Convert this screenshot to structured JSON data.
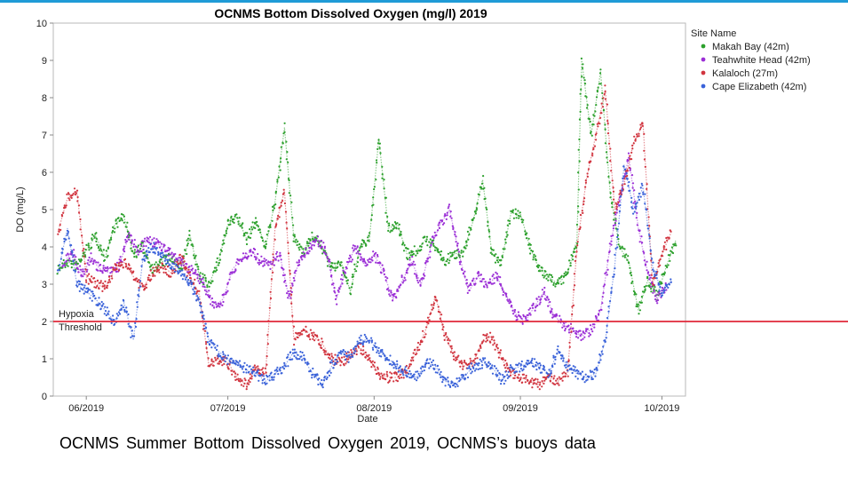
{
  "colors": {
    "top_rule": "#1f9bd7",
    "threshold": "#e0283a",
    "makah": "#2ca02c",
    "teahwhite": "#9b2fd6",
    "kalaloch": "#d1343f",
    "cape": "#3a62d9"
  },
  "caption": "OCNMS Summer  Bottom  Dissolved Oxygen 2019, OCNMS’s buoys data",
  "chart_data": {
    "type": "scatter",
    "title": "OCNMS Bottom Dissolved Oxygen (mg/l) 2019",
    "xlabel": "Date",
    "ylabel": "DO (mg/L)",
    "xlim": [
      "2019-05-25",
      "2019-10-06"
    ],
    "ylim": [
      0,
      10
    ],
    "x_ticks": [
      {
        "date": "2019-06-01",
        "label": "06/2019"
      },
      {
        "date": "2019-07-01",
        "label": "07/2019"
      },
      {
        "date": "2019-08-01",
        "label": "08/2019"
      },
      {
        "date": "2019-09-01",
        "label": "09/2019"
      },
      {
        "date": "2019-10-01",
        "label": "10/2019"
      }
    ],
    "y_ticks": [
      "0",
      "1",
      "2",
      "3",
      "4",
      "5",
      "6",
      "7",
      "8",
      "9",
      "10"
    ],
    "grid": false,
    "legend": {
      "title": "Site Name",
      "position": "right"
    },
    "threshold": {
      "value": 2,
      "label_line1": "Hypoxia",
      "label_line2": "Threshold"
    },
    "series": [
      {
        "name": "Makah Bay (42m)",
        "color_key": "makah",
        "points": [
          [
            "2019-05-26",
            3.4
          ],
          [
            "2019-05-28",
            3.6
          ],
          [
            "2019-05-30",
            3.5
          ],
          [
            "2019-06-01",
            3.9
          ],
          [
            "2019-06-03",
            4.3
          ],
          [
            "2019-06-05",
            3.7
          ],
          [
            "2019-06-07",
            4.6
          ],
          [
            "2019-06-09",
            4.8
          ],
          [
            "2019-06-11",
            3.8
          ],
          [
            "2019-06-13",
            4.0
          ],
          [
            "2019-06-15",
            3.4
          ],
          [
            "2019-06-17",
            3.6
          ],
          [
            "2019-06-19",
            3.7
          ],
          [
            "2019-06-21",
            3.4
          ],
          [
            "2019-06-23",
            4.3
          ],
          [
            "2019-06-25",
            3.2
          ],
          [
            "2019-06-27",
            3.0
          ],
          [
            "2019-06-29",
            3.6
          ],
          [
            "2019-07-01",
            4.6
          ],
          [
            "2019-07-03",
            4.8
          ],
          [
            "2019-07-05",
            4.2
          ],
          [
            "2019-07-07",
            4.7
          ],
          [
            "2019-07-09",
            4.0
          ],
          [
            "2019-07-11",
            5.2
          ],
          [
            "2019-07-13",
            7.2
          ],
          [
            "2019-07-15",
            4.2
          ],
          [
            "2019-07-17",
            3.9
          ],
          [
            "2019-07-19",
            4.3
          ],
          [
            "2019-07-21",
            4.0
          ],
          [
            "2019-07-23",
            3.4
          ],
          [
            "2019-07-25",
            3.6
          ],
          [
            "2019-07-27",
            2.8
          ],
          [
            "2019-07-29",
            4.0
          ],
          [
            "2019-07-31",
            4.2
          ],
          [
            "2019-08-02",
            6.9
          ],
          [
            "2019-08-04",
            4.5
          ],
          [
            "2019-08-06",
            4.6
          ],
          [
            "2019-08-08",
            3.8
          ],
          [
            "2019-08-10",
            3.9
          ],
          [
            "2019-08-12",
            4.2
          ],
          [
            "2019-08-14",
            4.0
          ],
          [
            "2019-08-16",
            3.6
          ],
          [
            "2019-08-18",
            3.8
          ],
          [
            "2019-08-20",
            3.9
          ],
          [
            "2019-08-22",
            4.7
          ],
          [
            "2019-08-24",
            5.8
          ],
          [
            "2019-08-26",
            3.8
          ],
          [
            "2019-08-28",
            3.6
          ],
          [
            "2019-08-30",
            4.9
          ],
          [
            "2019-09-01",
            4.9
          ],
          [
            "2019-09-03",
            4.0
          ],
          [
            "2019-09-05",
            3.4
          ],
          [
            "2019-09-07",
            3.2
          ],
          [
            "2019-09-09",
            3.0
          ],
          [
            "2019-09-11",
            3.3
          ],
          [
            "2019-09-13",
            4.2
          ],
          [
            "2019-09-14",
            9.0
          ],
          [
            "2019-09-16",
            7.0
          ],
          [
            "2019-09-18",
            8.7
          ],
          [
            "2019-09-20",
            5.5
          ],
          [
            "2019-09-22",
            4.0
          ],
          [
            "2019-09-24",
            3.6
          ],
          [
            "2019-09-26",
            2.3
          ],
          [
            "2019-09-28",
            3.1
          ],
          [
            "2019-09-30",
            2.7
          ],
          [
            "2019-10-02",
            3.5
          ],
          [
            "2019-10-04",
            4.2
          ]
        ]
      },
      {
        "name": "Teahwhite Head (42m)",
        "color_key": "teahwhite",
        "points": [
          [
            "2019-05-27",
            3.5
          ],
          [
            "2019-05-29",
            3.9
          ],
          [
            "2019-05-31",
            3.2
          ],
          [
            "2019-06-02",
            3.7
          ],
          [
            "2019-06-04",
            3.4
          ],
          [
            "2019-06-06",
            3.3
          ],
          [
            "2019-06-08",
            3.5
          ],
          [
            "2019-06-10",
            4.3
          ],
          [
            "2019-06-12",
            3.9
          ],
          [
            "2019-06-14",
            4.2
          ],
          [
            "2019-06-16",
            4.1
          ],
          [
            "2019-06-18",
            3.9
          ],
          [
            "2019-06-20",
            3.7
          ],
          [
            "2019-06-22",
            3.5
          ],
          [
            "2019-06-24",
            3.3
          ],
          [
            "2019-06-26",
            3.0
          ],
          [
            "2019-06-28",
            2.4
          ],
          [
            "2019-06-30",
            2.6
          ],
          [
            "2019-07-02",
            3.4
          ],
          [
            "2019-07-04",
            3.7
          ],
          [
            "2019-07-06",
            3.9
          ],
          [
            "2019-07-08",
            3.6
          ],
          [
            "2019-07-10",
            3.5
          ],
          [
            "2019-07-12",
            3.8
          ],
          [
            "2019-07-14",
            2.6
          ],
          [
            "2019-07-16",
            3.6
          ],
          [
            "2019-07-18",
            3.9
          ],
          [
            "2019-07-20",
            4.2
          ],
          [
            "2019-07-22",
            3.8
          ],
          [
            "2019-07-24",
            2.6
          ],
          [
            "2019-07-26",
            3.4
          ],
          [
            "2019-07-28",
            4.0
          ],
          [
            "2019-07-30",
            3.5
          ],
          [
            "2019-08-01",
            3.8
          ],
          [
            "2019-08-03",
            3.3
          ],
          [
            "2019-08-05",
            2.6
          ],
          [
            "2019-08-07",
            3.1
          ],
          [
            "2019-08-09",
            3.6
          ],
          [
            "2019-08-11",
            3.0
          ],
          [
            "2019-08-13",
            4.0
          ],
          [
            "2019-08-15",
            4.6
          ],
          [
            "2019-08-17",
            5.0
          ],
          [
            "2019-08-19",
            3.8
          ],
          [
            "2019-08-21",
            2.8
          ],
          [
            "2019-08-23",
            3.2
          ],
          [
            "2019-08-25",
            3.0
          ],
          [
            "2019-08-27",
            3.2
          ],
          [
            "2019-08-29",
            2.7
          ],
          [
            "2019-08-31",
            2.2
          ],
          [
            "2019-09-02",
            2.0
          ],
          [
            "2019-09-04",
            2.4
          ],
          [
            "2019-09-06",
            2.8
          ],
          [
            "2019-09-08",
            2.2
          ],
          [
            "2019-09-10",
            1.9
          ],
          [
            "2019-09-12",
            1.8
          ],
          [
            "2019-09-14",
            1.6
          ],
          [
            "2019-09-16",
            1.8
          ],
          [
            "2019-09-18",
            2.3
          ],
          [
            "2019-09-20",
            4.0
          ],
          [
            "2019-09-22",
            5.3
          ],
          [
            "2019-09-24",
            6.4
          ],
          [
            "2019-09-26",
            4.5
          ],
          [
            "2019-09-28",
            3.3
          ],
          [
            "2019-09-30",
            2.6
          ],
          [
            "2019-10-02",
            3.0
          ]
        ]
      },
      {
        "name": "Kalaloch (27m)",
        "color_key": "kalaloch",
        "points": [
          [
            "2019-05-26",
            4.4
          ],
          [
            "2019-05-28",
            5.3
          ],
          [
            "2019-05-30",
            5.5
          ],
          [
            "2019-06-01",
            3.2
          ],
          [
            "2019-06-03",
            3.0
          ],
          [
            "2019-06-05",
            2.9
          ],
          [
            "2019-06-07",
            3.4
          ],
          [
            "2019-06-09",
            3.6
          ],
          [
            "2019-06-11",
            3.2
          ],
          [
            "2019-06-13",
            2.9
          ],
          [
            "2019-06-15",
            3.3
          ],
          [
            "2019-06-17",
            3.5
          ],
          [
            "2019-06-19",
            3.3
          ],
          [
            "2019-06-21",
            3.7
          ],
          [
            "2019-06-23",
            3.2
          ],
          [
            "2019-06-25",
            2.7
          ],
          [
            "2019-06-27",
            0.8
          ],
          [
            "2019-06-29",
            1.0
          ],
          [
            "2019-07-01",
            0.9
          ],
          [
            "2019-07-03",
            0.5
          ],
          [
            "2019-07-05",
            0.3
          ],
          [
            "2019-07-07",
            0.8
          ],
          [
            "2019-07-09",
            0.6
          ],
          [
            "2019-07-11",
            4.5
          ],
          [
            "2019-07-13",
            5.5
          ],
          [
            "2019-07-15",
            1.5
          ],
          [
            "2019-07-17",
            1.8
          ],
          [
            "2019-07-19",
            1.6
          ],
          [
            "2019-07-21",
            1.4
          ],
          [
            "2019-07-23",
            1.0
          ],
          [
            "2019-07-25",
            0.9
          ],
          [
            "2019-07-27",
            1.1
          ],
          [
            "2019-07-29",
            1.3
          ],
          [
            "2019-07-31",
            1.0
          ],
          [
            "2019-08-02",
            0.6
          ],
          [
            "2019-08-04",
            0.5
          ],
          [
            "2019-08-06",
            0.5
          ],
          [
            "2019-08-08",
            0.7
          ],
          [
            "2019-08-10",
            1.2
          ],
          [
            "2019-08-12",
            1.8
          ],
          [
            "2019-08-14",
            2.7
          ],
          [
            "2019-08-16",
            1.6
          ],
          [
            "2019-08-18",
            1.1
          ],
          [
            "2019-08-20",
            0.8
          ],
          [
            "2019-08-22",
            0.9
          ],
          [
            "2019-08-24",
            1.5
          ],
          [
            "2019-08-26",
            1.6
          ],
          [
            "2019-08-28",
            1.0
          ],
          [
            "2019-08-30",
            0.6
          ],
          [
            "2019-09-01",
            0.5
          ],
          [
            "2019-09-03",
            0.4
          ],
          [
            "2019-09-05",
            0.3
          ],
          [
            "2019-09-07",
            0.5
          ],
          [
            "2019-09-09",
            0.4
          ],
          [
            "2019-09-11",
            0.6
          ],
          [
            "2019-09-13",
            4.0
          ],
          [
            "2019-09-15",
            5.8
          ],
          [
            "2019-09-17",
            7.0
          ],
          [
            "2019-09-19",
            8.2
          ],
          [
            "2019-09-21",
            5.0
          ],
          [
            "2019-09-23",
            5.7
          ],
          [
            "2019-09-25",
            6.8
          ],
          [
            "2019-09-27",
            7.3
          ],
          [
            "2019-09-29",
            3.0
          ],
          [
            "2019-10-01",
            3.8
          ],
          [
            "2019-10-03",
            4.4
          ]
        ]
      },
      {
        "name": "Cape Elizabeth (42m)",
        "color_key": "cape",
        "points": [
          [
            "2019-05-26",
            3.3
          ],
          [
            "2019-05-28",
            4.5
          ],
          [
            "2019-05-30",
            3.0
          ],
          [
            "2019-06-01",
            2.8
          ],
          [
            "2019-06-03",
            2.6
          ],
          [
            "2019-06-05",
            2.3
          ],
          [
            "2019-06-07",
            2.0
          ],
          [
            "2019-06-09",
            2.5
          ],
          [
            "2019-06-11",
            1.5
          ],
          [
            "2019-06-13",
            3.7
          ],
          [
            "2019-06-15",
            4.0
          ],
          [
            "2019-06-17",
            3.8
          ],
          [
            "2019-06-19",
            3.5
          ],
          [
            "2019-06-21",
            3.3
          ],
          [
            "2019-06-23",
            3.0
          ],
          [
            "2019-06-25",
            2.5
          ],
          [
            "2019-06-27",
            1.5
          ],
          [
            "2019-06-29",
            1.2
          ],
          [
            "2019-07-01",
            1.0
          ],
          [
            "2019-07-03",
            0.9
          ],
          [
            "2019-07-05",
            0.7
          ],
          [
            "2019-07-07",
            0.6
          ],
          [
            "2019-07-09",
            0.4
          ],
          [
            "2019-07-11",
            0.6
          ],
          [
            "2019-07-13",
            0.8
          ],
          [
            "2019-07-15",
            1.2
          ],
          [
            "2019-07-17",
            1.0
          ],
          [
            "2019-07-19",
            0.6
          ],
          [
            "2019-07-21",
            0.3
          ],
          [
            "2019-07-23",
            0.8
          ],
          [
            "2019-07-25",
            1.2
          ],
          [
            "2019-07-27",
            1.0
          ],
          [
            "2019-07-29",
            1.5
          ],
          [
            "2019-07-31",
            1.5
          ],
          [
            "2019-08-02",
            1.2
          ],
          [
            "2019-08-04",
            1.0
          ],
          [
            "2019-08-06",
            0.8
          ],
          [
            "2019-08-08",
            0.6
          ],
          [
            "2019-08-10",
            0.5
          ],
          [
            "2019-08-12",
            0.9
          ],
          [
            "2019-08-14",
            0.8
          ],
          [
            "2019-08-16",
            0.4
          ],
          [
            "2019-08-18",
            0.3
          ],
          [
            "2019-08-20",
            0.5
          ],
          [
            "2019-08-22",
            0.8
          ],
          [
            "2019-08-24",
            0.9
          ],
          [
            "2019-08-26",
            0.8
          ],
          [
            "2019-08-28",
            0.4
          ],
          [
            "2019-08-30",
            0.7
          ],
          [
            "2019-09-01",
            0.8
          ],
          [
            "2019-09-03",
            0.9
          ],
          [
            "2019-09-05",
            0.8
          ],
          [
            "2019-09-07",
            0.6
          ],
          [
            "2019-09-09",
            1.2
          ],
          [
            "2019-09-11",
            0.8
          ],
          [
            "2019-09-13",
            0.6
          ],
          [
            "2019-09-15",
            0.5
          ],
          [
            "2019-09-17",
            0.6
          ],
          [
            "2019-09-19",
            1.5
          ],
          [
            "2019-09-21",
            3.5
          ],
          [
            "2019-09-23",
            6.2
          ],
          [
            "2019-09-25",
            5.0
          ],
          [
            "2019-09-27",
            5.6
          ],
          [
            "2019-09-29",
            3.5
          ],
          [
            "2019-10-01",
            2.8
          ],
          [
            "2019-10-03",
            3.1
          ]
        ]
      }
    ]
  }
}
